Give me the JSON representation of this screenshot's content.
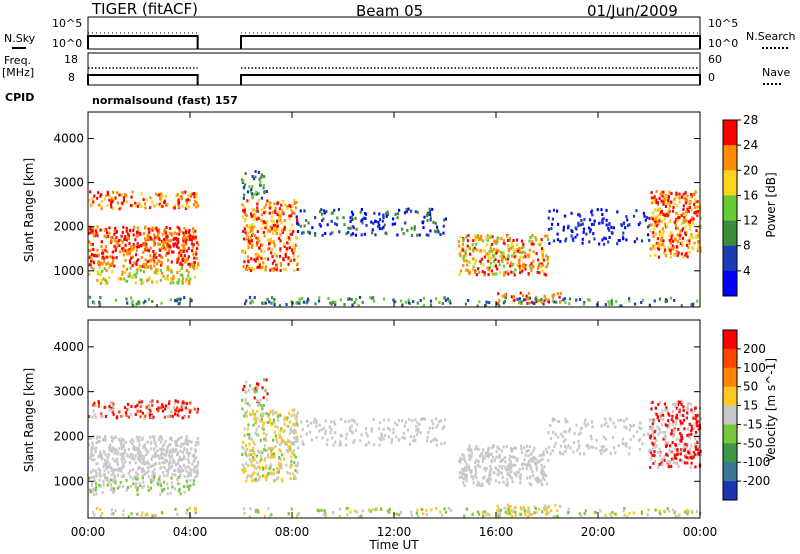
{
  "header": {
    "radar": "TIGER (fitACF)",
    "beam": "Beam 05",
    "date": "01/Jun/2009"
  },
  "status_panels": {
    "nsky_label": "N.Sky",
    "nsearch_label": "N.Search",
    "nsky_ticks": [
      "10^5",
      "10^0"
    ],
    "freq_label_1": "Freq.",
    "freq_label_2": "[MHz]",
    "freq_ticks": [
      "18",
      "8"
    ],
    "nave_label": "Nave",
    "nave_ticks": [
      "60",
      "0"
    ],
    "cpid_label": "CPID",
    "cpid_value": "normalsound (fast) 157"
  },
  "chart_data": [
    {
      "type": "heatmap",
      "name": "Power",
      "xlabel": "Time UT",
      "ylabel": "Slant Range [km]",
      "x_ticks": [
        "00:00",
        "04:00",
        "08:00",
        "12:00",
        "16:00",
        "20:00",
        "00:00"
      ],
      "y_ticks": [
        1000,
        2000,
        3000,
        4000
      ],
      "ylim": [
        180,
        4600
      ],
      "xlim_hours": [
        0,
        24
      ],
      "data_gap_hours": [
        4.3,
        6.0
      ],
      "colorbar_label": "Power [dB]",
      "colorbar_ticks": [
        4,
        8,
        12,
        16,
        20,
        24,
        28
      ],
      "colorbar_colors": [
        "#0000ff",
        "#1e3cb4",
        "#3c8c3c",
        "#66cc33",
        "#ffd21e",
        "#ff8c00",
        "#ff0000"
      ]
    },
    {
      "type": "heatmap",
      "name": "Velocity",
      "xlabel": "Time UT",
      "ylabel": "Slant Range [km]",
      "x_ticks": [
        "00:00",
        "04:00",
        "08:00",
        "12:00",
        "16:00",
        "20:00",
        "00:00"
      ],
      "y_ticks": [
        1000,
        2000,
        3000,
        4000
      ],
      "ylim": [
        180,
        4600
      ],
      "xlim_hours": [
        0,
        24
      ],
      "data_gap_hours": [
        4.3,
        6.0
      ],
      "colorbar_label": "Velocity [m s^-1]",
      "colorbar_ticks": [
        200,
        100,
        50,
        15,
        -15,
        -50,
        -100,
        -200
      ],
      "colorbar_colors": [
        "#1e32b4",
        "#3c7896",
        "#3c9646",
        "#78c83c",
        "#c8c8c8",
        "#ffc81e",
        "#ff8200",
        "#ff4600",
        "#ff0000"
      ]
    }
  ],
  "x_axis_label": "Time UT"
}
